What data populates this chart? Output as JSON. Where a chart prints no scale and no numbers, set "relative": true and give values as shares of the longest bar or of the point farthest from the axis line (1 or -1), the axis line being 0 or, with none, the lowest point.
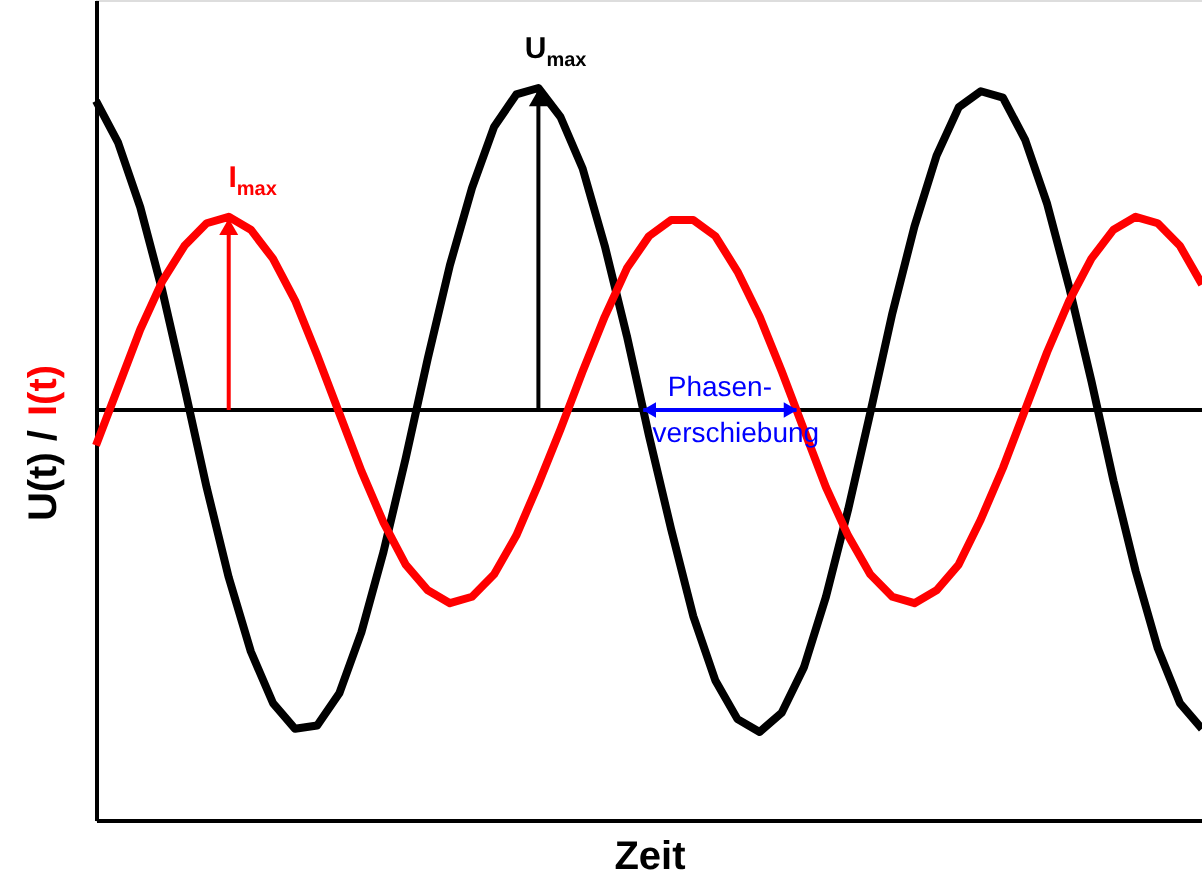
{
  "chart_data": {
    "type": "line",
    "relative": true,
    "xlabel": "Zeit",
    "ylabel": "U(t) / I(t)",
    "categories": [
      null,
      null,
      null,
      null,
      null,
      null,
      null,
      null,
      null,
      null,
      null,
      null,
      null,
      null,
      null,
      null,
      null,
      null,
      null,
      null,
      null,
      null,
      null,
      null,
      null,
      null,
      null,
      null,
      null,
      null,
      null,
      null,
      null,
      null,
      null,
      null,
      null,
      null,
      null,
      null,
      null,
      null,
      null,
      null,
      null,
      null,
      null,
      null,
      null,
      null,
      null
    ],
    "series": [
      {
        "color": "#000000",
        "values": [
          0.96,
          0.83,
          0.63,
          0.37,
          0.07,
          -0.24,
          -0.52,
          -0.75,
          -0.91,
          -0.99,
          -0.98,
          -0.88,
          -0.69,
          -0.44,
          -0.15,
          0.16,
          0.45,
          0.69,
          0.88,
          0.98,
          1.0,
          0.91,
          0.75,
          0.51,
          0.23,
          -0.08,
          -0.37,
          -0.64,
          -0.84,
          -0.96,
          -1.0,
          -0.94,
          -0.8,
          -0.58,
          -0.31,
          -0.01,
          0.3,
          0.57,
          0.79,
          0.94,
          0.99,
          0.97,
          0.84,
          0.64,
          0.38,
          0.09,
          -0.22,
          -0.5,
          -0.74,
          -0.91,
          -0.99
        ]
      },
      {
        "color": "#ff0000",
        "values": [
          -0.11,
          0.07,
          0.25,
          0.4,
          0.51,
          0.58,
          0.6,
          0.56,
          0.47,
          0.34,
          0.17,
          -0.01,
          -0.19,
          -0.35,
          -0.48,
          -0.56,
          -0.6,
          -0.58,
          -0.51,
          -0.39,
          -0.23,
          -0.06,
          0.12,
          0.29,
          0.44,
          0.54,
          0.59,
          0.59,
          0.54,
          0.43,
          0.29,
          0.12,
          -0.06,
          -0.24,
          -0.39,
          -0.51,
          -0.58,
          -0.6,
          -0.56,
          -0.48,
          -0.34,
          -0.18,
          0.0,
          0.18,
          0.34,
          0.47,
          0.56,
          0.6,
          0.58,
          0.51,
          0.39
        ]
      }
    ],
    "annotations": [
      {
        "text": "U$_{max}$",
        "y": 1.0
      },
      {
        "text": "I$_{max}$",
        "y": 0.6
      },
      "Phasen-verschiebung"
    ],
    "line_style": "solid",
    "marker": "none",
    "grid": false
  }
}
